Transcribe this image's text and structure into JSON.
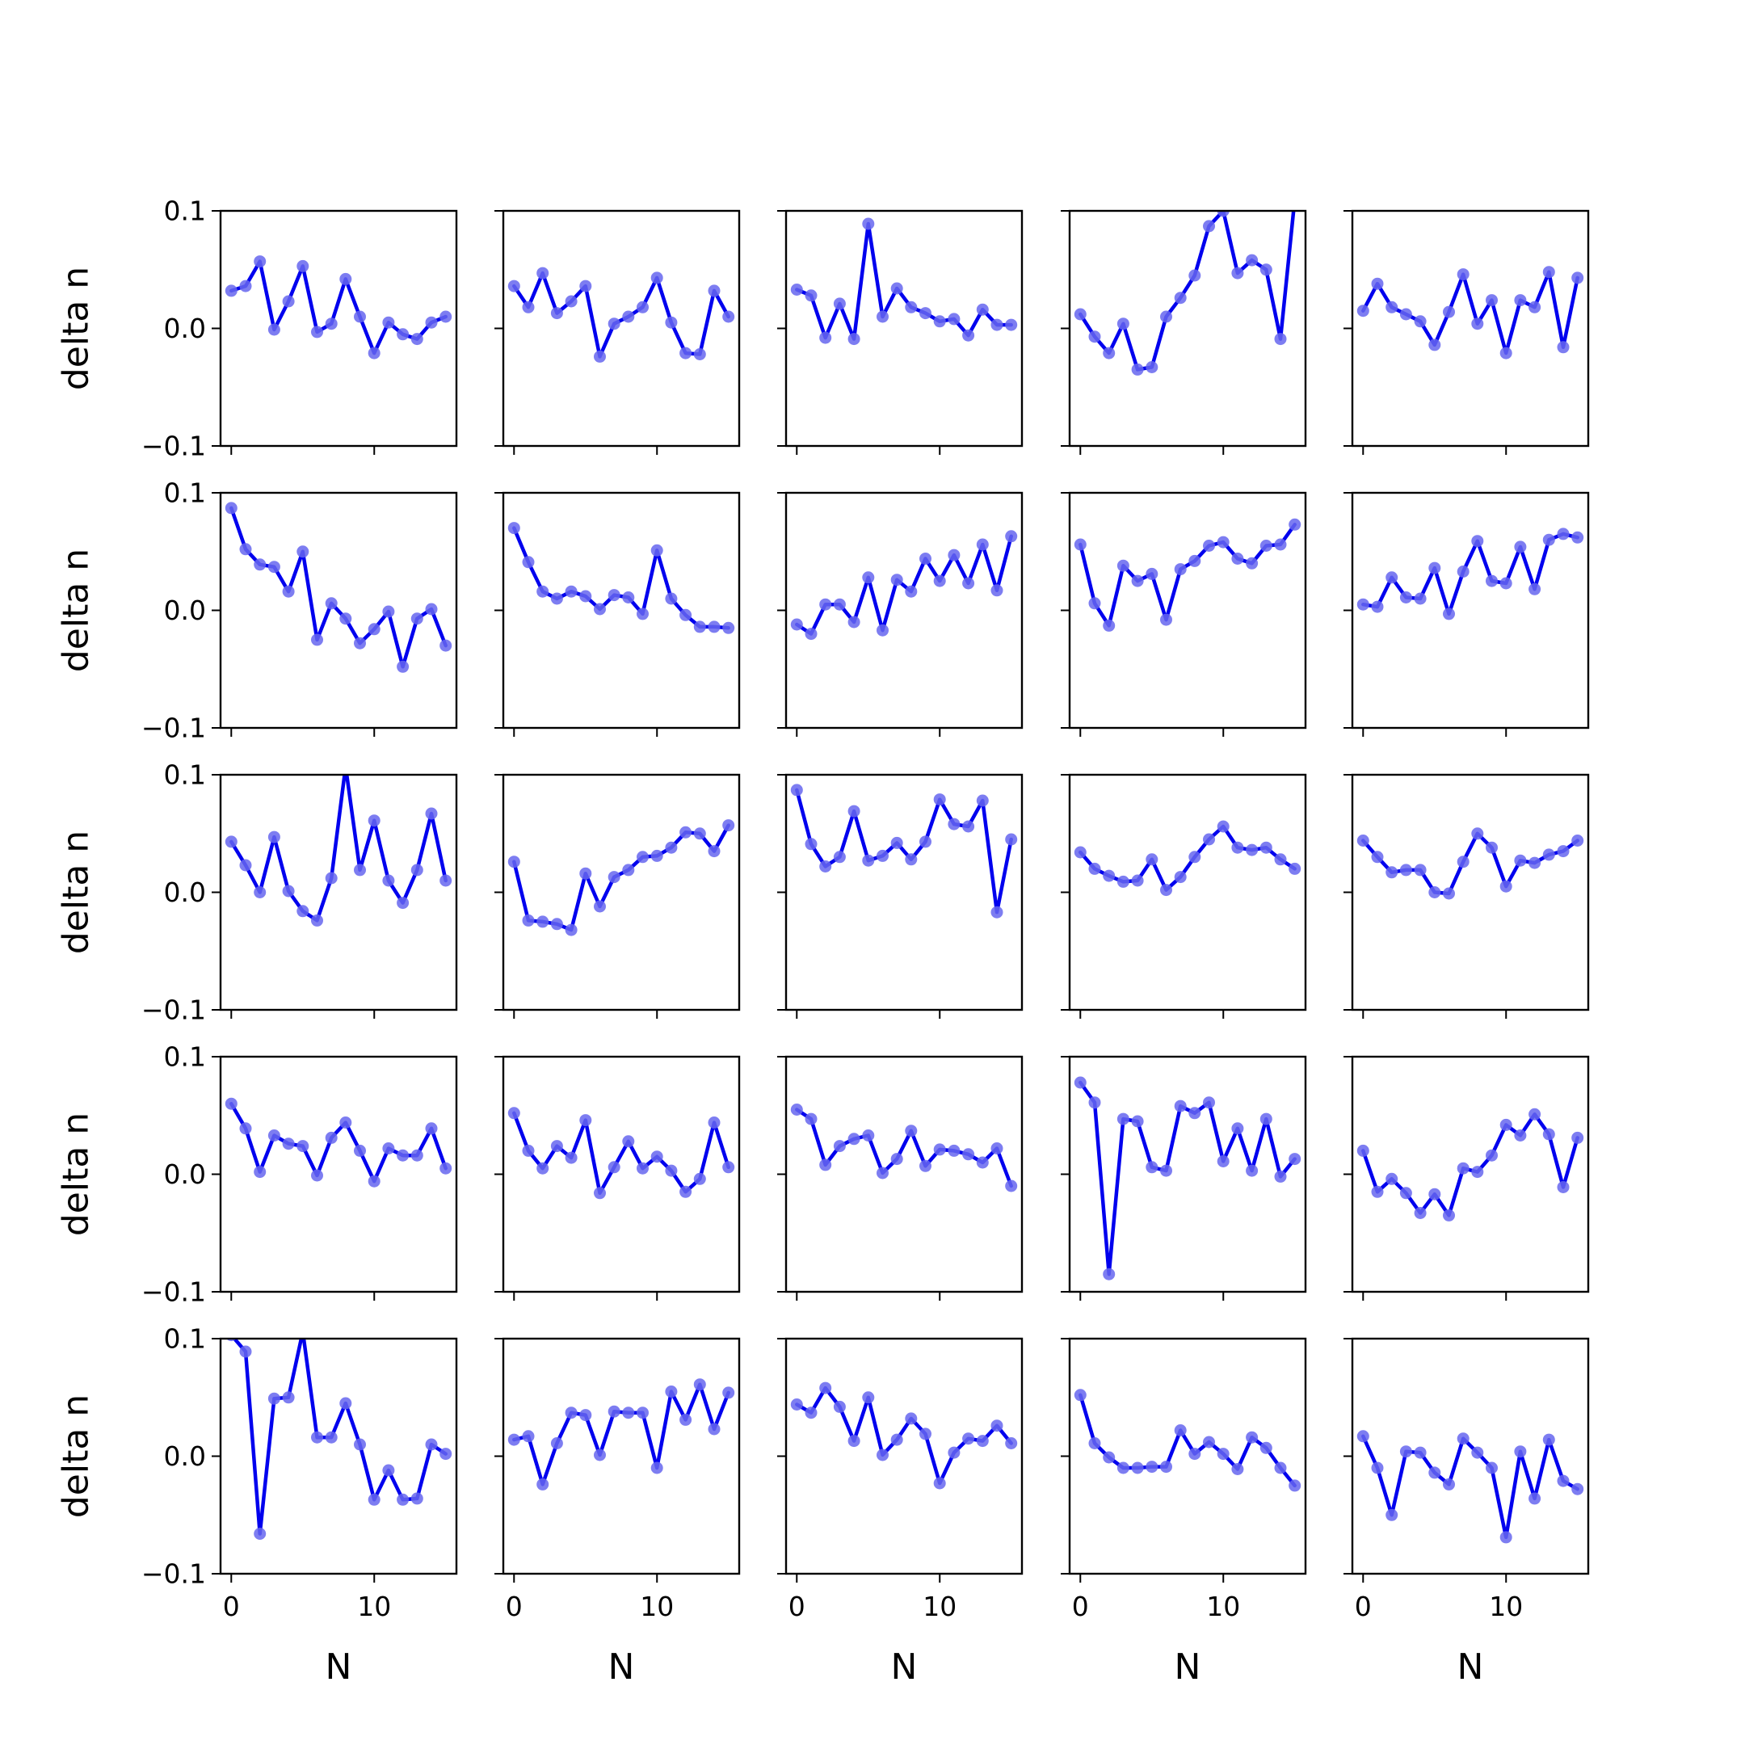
{
  "chart_data": {
    "type": "line",
    "layout": "5x5 grid of small multiples",
    "xlabel": "N",
    "ylabel": "delta n",
    "xlim": [
      -0.75,
      15.75
    ],
    "ylim": [
      -0.1,
      0.1
    ],
    "xticks": [
      0,
      10
    ],
    "xtick_labels": [
      "0",
      "10"
    ],
    "yticks": [
      -0.1,
      0.0,
      0.1
    ],
    "ytick_labels": [
      "−0.1",
      "0.0",
      "0.1"
    ],
    "grid": false,
    "line_color": "#0000ee",
    "marker_color": "#6666ee",
    "x": [
      0,
      1,
      2,
      3,
      4,
      5,
      6,
      7,
      8,
      9,
      10,
      11,
      12,
      13,
      14,
      15
    ],
    "panels": [
      {
        "row": 0,
        "col": 0,
        "values": [
          0.032,
          0.036,
          0.057,
          -0.001,
          0.023,
          0.053,
          -0.003,
          0.004,
          0.042,
          0.01,
          -0.021,
          0.005,
          -0.005,
          -0.009,
          0.005,
          0.01
        ]
      },
      {
        "row": 0,
        "col": 1,
        "values": [
          0.036,
          0.018,
          0.047,
          0.013,
          0.023,
          0.036,
          -0.024,
          0.004,
          0.01,
          0.018,
          0.043,
          0.005,
          -0.021,
          -0.022,
          0.032,
          0.01
        ]
      },
      {
        "row": 0,
        "col": 2,
        "values": [
          0.033,
          0.028,
          -0.008,
          0.021,
          -0.009,
          0.089,
          0.01,
          0.034,
          0.018,
          0.013,
          0.006,
          0.008,
          -0.006,
          0.016,
          0.003,
          0.003
        ]
      },
      {
        "row": 0,
        "col": 3,
        "values": [
          0.012,
          -0.007,
          -0.021,
          0.004,
          -0.035,
          -0.033,
          0.01,
          0.026,
          0.045,
          0.087,
          0.1,
          0.047,
          0.058,
          0.05,
          -0.009,
          0.11
        ]
      },
      {
        "row": 0,
        "col": 4,
        "values": [
          0.015,
          0.038,
          0.018,
          0.012,
          0.006,
          -0.014,
          0.014,
          0.046,
          0.004,
          0.024,
          -0.021,
          0.024,
          0.018,
          0.048,
          -0.016,
          0.043
        ]
      },
      {
        "row": 1,
        "col": 0,
        "values": [
          0.087,
          0.052,
          0.039,
          0.037,
          0.016,
          0.05,
          -0.025,
          0.006,
          -0.007,
          -0.028,
          -0.016,
          -0.001,
          -0.048,
          -0.007,
          0.001,
          -0.03
        ]
      },
      {
        "row": 1,
        "col": 1,
        "values": [
          0.07,
          0.041,
          0.016,
          0.01,
          0.016,
          0.012,
          0.001,
          0.013,
          0.011,
          -0.003,
          0.051,
          0.01,
          -0.004,
          -0.014,
          -0.014,
          -0.015
        ]
      },
      {
        "row": 1,
        "col": 2,
        "values": [
          -0.012,
          -0.02,
          0.005,
          0.005,
          -0.01,
          0.028,
          -0.017,
          0.026,
          0.016,
          0.044,
          0.025,
          0.047,
          0.023,
          0.056,
          0.017,
          0.063
        ]
      },
      {
        "row": 1,
        "col": 3,
        "values": [
          0.056,
          0.006,
          -0.013,
          0.038,
          0.025,
          0.031,
          -0.008,
          0.035,
          0.042,
          0.055,
          0.058,
          0.044,
          0.04,
          0.055,
          0.056,
          0.073
        ]
      },
      {
        "row": 1,
        "col": 4,
        "values": [
          0.005,
          0.003,
          0.028,
          0.011,
          0.01,
          0.036,
          -0.003,
          0.033,
          0.059,
          0.025,
          0.023,
          0.054,
          0.018,
          0.06,
          0.065,
          0.062
        ]
      },
      {
        "row": 2,
        "col": 0,
        "values": [
          0.043,
          0.023,
          0.0,
          0.047,
          0.001,
          -0.016,
          -0.024,
          0.012,
          0.107,
          0.019,
          0.061,
          0.01,
          -0.009,
          0.019,
          0.067,
          0.01
        ]
      },
      {
        "row": 2,
        "col": 1,
        "values": [
          0.026,
          -0.024,
          -0.025,
          -0.027,
          -0.032,
          0.016,
          -0.012,
          0.013,
          0.019,
          0.03,
          0.031,
          0.038,
          0.051,
          0.05,
          0.035,
          0.057
        ]
      },
      {
        "row": 2,
        "col": 2,
        "values": [
          0.087,
          0.041,
          0.022,
          0.03,
          0.069,
          0.027,
          0.031,
          0.042,
          0.028,
          0.043,
          0.079,
          0.058,
          0.056,
          0.078,
          -0.017,
          0.045
        ]
      },
      {
        "row": 2,
        "col": 3,
        "values": [
          0.034,
          0.02,
          0.014,
          0.009,
          0.01,
          0.028,
          0.002,
          0.013,
          0.03,
          0.045,
          0.056,
          0.038,
          0.036,
          0.038,
          0.028,
          0.02
        ]
      },
      {
        "row": 2,
        "col": 4,
        "values": [
          0.044,
          0.03,
          0.017,
          0.019,
          0.019,
          0.0,
          -0.001,
          0.026,
          0.05,
          0.038,
          0.005,
          0.027,
          0.025,
          0.032,
          0.035,
          0.044
        ]
      },
      {
        "row": 3,
        "col": 0,
        "values": [
          0.06,
          0.039,
          0.002,
          0.033,
          0.026,
          0.024,
          -0.001,
          0.031,
          0.044,
          0.02,
          -0.006,
          0.022,
          0.016,
          0.016,
          0.039,
          0.005
        ]
      },
      {
        "row": 3,
        "col": 1,
        "values": [
          0.052,
          0.02,
          0.005,
          0.024,
          0.014,
          0.046,
          -0.016,
          0.006,
          0.028,
          0.005,
          0.015,
          0.003,
          -0.015,
          -0.004,
          0.044,
          0.006
        ]
      },
      {
        "row": 3,
        "col": 2,
        "values": [
          0.055,
          0.047,
          0.008,
          0.024,
          0.03,
          0.033,
          0.001,
          0.013,
          0.037,
          0.007,
          0.021,
          0.02,
          0.017,
          0.01,
          0.022,
          -0.01
        ]
      },
      {
        "row": 3,
        "col": 3,
        "values": [
          0.078,
          0.061,
          -0.085,
          0.047,
          0.045,
          0.006,
          0.003,
          0.058,
          0.052,
          0.061,
          0.011,
          0.039,
          0.003,
          0.047,
          -0.002,
          0.013
        ]
      },
      {
        "row": 3,
        "col": 4,
        "values": [
          0.02,
          -0.015,
          -0.004,
          -0.016,
          -0.033,
          -0.017,
          -0.035,
          0.005,
          0.002,
          0.016,
          0.042,
          0.033,
          0.051,
          0.034,
          -0.011,
          0.031
        ]
      },
      {
        "row": 4,
        "col": 0,
        "values": [
          0.103,
          0.089,
          -0.066,
          0.049,
          0.05,
          0.106,
          0.016,
          0.016,
          0.045,
          0.01,
          -0.037,
          -0.012,
          -0.037,
          -0.036,
          0.01,
          0.002
        ]
      },
      {
        "row": 4,
        "col": 1,
        "values": [
          0.014,
          0.017,
          -0.024,
          0.011,
          0.037,
          0.035,
          0.001,
          0.038,
          0.037,
          0.037,
          -0.01,
          0.055,
          0.031,
          0.061,
          0.023,
          0.054
        ]
      },
      {
        "row": 4,
        "col": 2,
        "values": [
          0.044,
          0.037,
          0.058,
          0.042,
          0.013,
          0.05,
          0.001,
          0.014,
          0.032,
          0.019,
          -0.023,
          0.003,
          0.015,
          0.013,
          0.026,
          0.011
        ]
      },
      {
        "row": 4,
        "col": 3,
        "values": [
          0.052,
          0.011,
          -0.001,
          -0.01,
          -0.01,
          -0.009,
          -0.009,
          0.022,
          0.002,
          0.012,
          0.002,
          -0.011,
          0.016,
          0.007,
          -0.01,
          -0.025
        ]
      },
      {
        "row": 4,
        "col": 4,
        "values": [
          0.017,
          -0.01,
          -0.05,
          0.004,
          0.003,
          -0.014,
          -0.024,
          0.015,
          0.003,
          -0.01,
          -0.069,
          0.004,
          -0.036,
          0.014,
          -0.021,
          -0.028
        ]
      }
    ]
  }
}
